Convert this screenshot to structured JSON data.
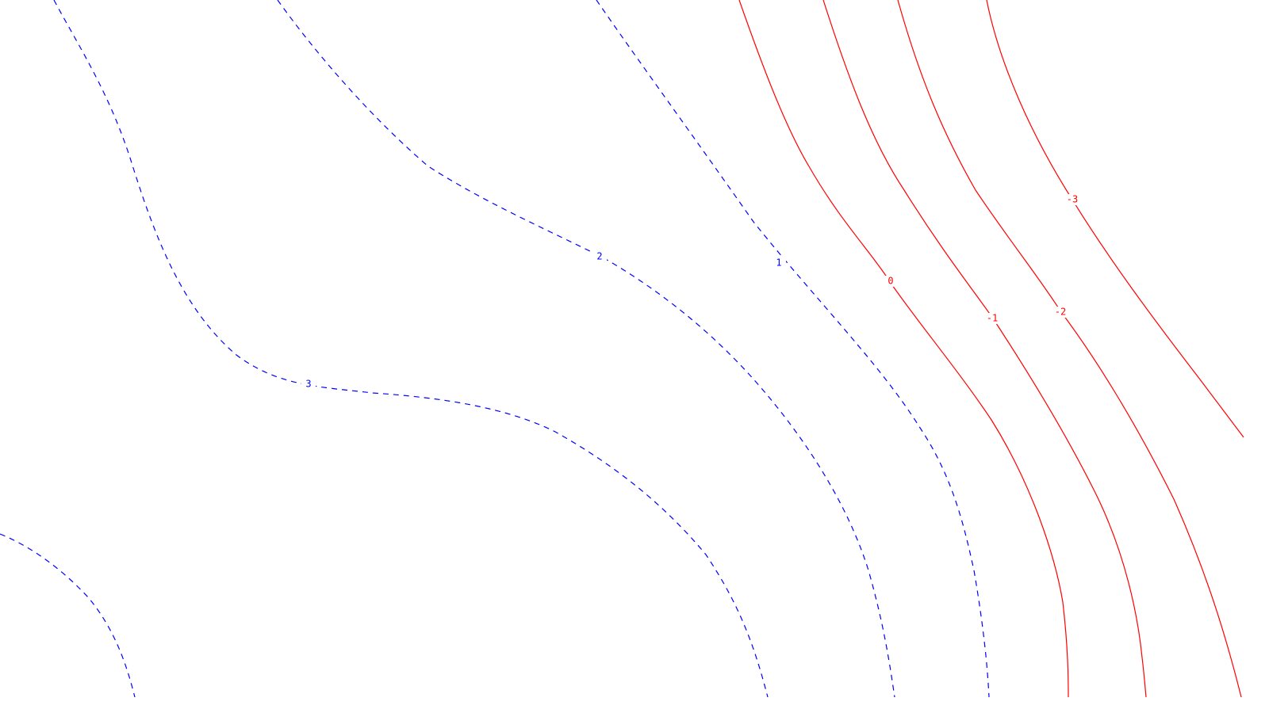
{
  "colors": {
    "positive": "#0000ff",
    "negative": "#ff0000",
    "background": "#ffffff"
  },
  "contours": [
    {
      "id": "contour-3",
      "label": "3",
      "sign": "positive"
    },
    {
      "id": "contour-2",
      "label": "2",
      "sign": "positive"
    },
    {
      "id": "contour-1",
      "label": "1",
      "sign": "positive"
    },
    {
      "id": "contour-0",
      "label": "0",
      "sign": "negative"
    },
    {
      "id": "contour-neg1",
      "label": "-1",
      "sign": "negative"
    },
    {
      "id": "contour-neg2",
      "label": "-2",
      "sign": "negative"
    },
    {
      "id": "contour-neg3",
      "label": "-3",
      "sign": "negative"
    },
    {
      "id": "contour-4-corner",
      "label": "",
      "sign": "positive"
    }
  ]
}
